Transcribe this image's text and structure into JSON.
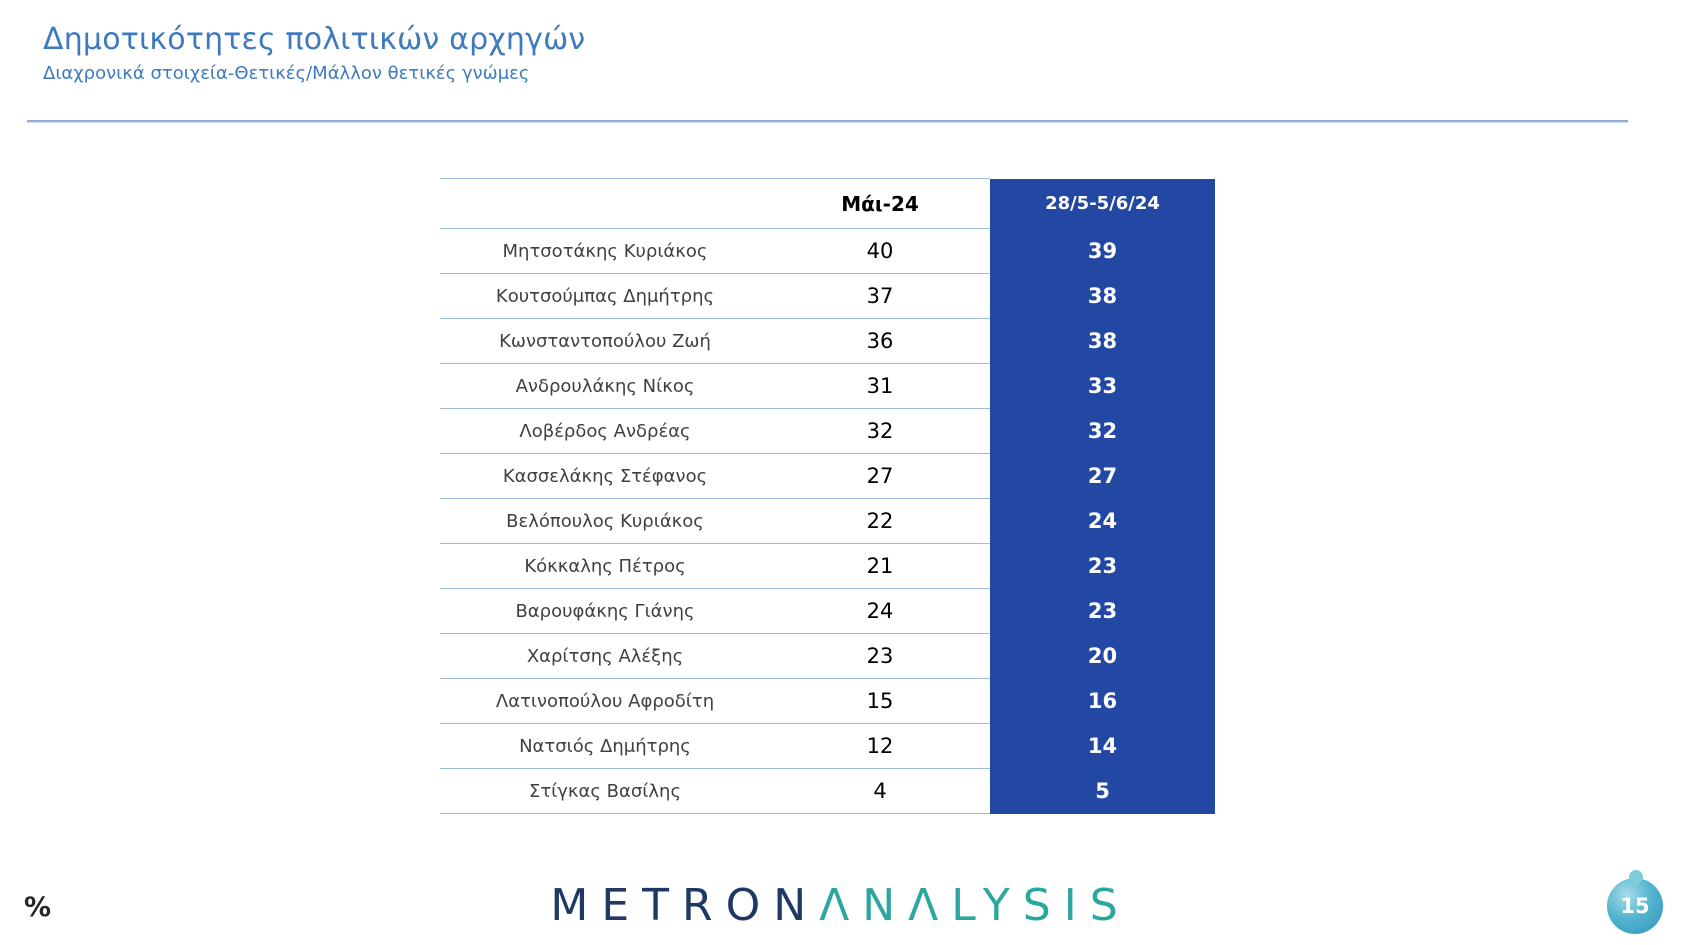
{
  "slide": {
    "title": "Δημοτικότητες πολιτικών αρχηγών",
    "subtitle": "Διαχρονικά στοιχεία-Θετικές/Μάλλον θετικές γνώμες",
    "page_number": "15",
    "logo": {
      "part1": "METRON",
      "part2": "ΛNΛLYSIS"
    }
  },
  "colors": {
    "title_blue": "#3d7abf",
    "dark_column_blue": "#2348a4",
    "row_divider_blue": "#9dbbdb",
    "logo_navy": "#1f3864",
    "logo_teal": "#2ba7a0",
    "badge_teal": "#2f93bb"
  },
  "chart_data": {
    "type": "table",
    "title": "Δημοτικότητες πολιτικών αρχηγών",
    "subtitle": "Διαχρονικά στοιχεία-Θετικές/Μάλλον θετικές γνώμες",
    "unit": "%",
    "columns": [
      "Μάι-24",
      "28/5-5/6/24"
    ],
    "rows": [
      {
        "name": "Μητσοτάκης Κυριάκος",
        "may24": 40,
        "latest": 39
      },
      {
        "name": "Κουτσούμπας Δημήτρης",
        "may24": 37,
        "latest": 38
      },
      {
        "name": "Κωνσταντοπούλου Ζωή",
        "may24": 36,
        "latest": 38
      },
      {
        "name": "Ανδρουλάκης Νίκος",
        "may24": 31,
        "latest": 33
      },
      {
        "name": "Λοβέρδος Ανδρέας",
        "may24": 32,
        "latest": 32
      },
      {
        "name": "Κασσελάκης Στέφανος",
        "may24": 27,
        "latest": 27
      },
      {
        "name": "Βελόπουλος Κυριάκος",
        "may24": 22,
        "latest": 24
      },
      {
        "name": "Κόκκαλης Πέτρος",
        "may24": 21,
        "latest": 23
      },
      {
        "name": "Βαρουφάκης Γιάνης",
        "may24": 24,
        "latest": 23
      },
      {
        "name": "Χαρίτσης Αλέξης",
        "may24": 23,
        "latest": 20
      },
      {
        "name": "Λατινοπούλου Αφροδίτη",
        "may24": 15,
        "latest": 16
      },
      {
        "name": "Νατσιός Δημήτρης",
        "may24": 12,
        "latest": 14
      },
      {
        "name": "Στίγκας Βασίλης",
        "may24": 4,
        "latest": 5
      }
    ]
  }
}
